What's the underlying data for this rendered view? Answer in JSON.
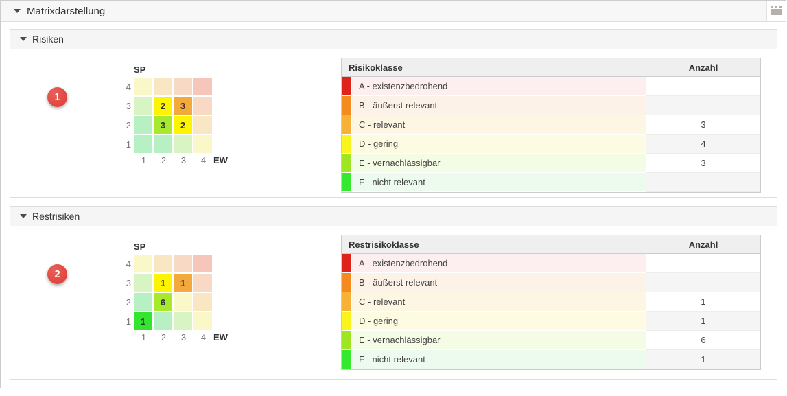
{
  "window": {
    "title": "Matrixdarstellung"
  },
  "risk_colors": {
    "a": {
      "strip": "#df231a",
      "tint": "#fdeef0",
      "cell_pale": "#f6c6ba",
      "cell_active": "#e02218"
    },
    "b": {
      "strip": "#f58b1f",
      "tint": "#fdf2e7",
      "cell_pale": "#f8d9c3",
      "cell_active": "#f58b1f"
    },
    "c": {
      "strip": "#f7b136",
      "tint": "#fcf6e3",
      "cell_pale": "#f9e6c3",
      "cell_active": "#f4a93c"
    },
    "d": {
      "strip": "#f9f41c",
      "tint": "#fdfce2",
      "cell_pale": "#faf8c8",
      "cell_active": "#fdf402"
    },
    "e": {
      "strip": "#9fe622",
      "tint": "#f4fce6",
      "cell_pale": "#d9f4c3",
      "cell_active": "#a7ea2d"
    },
    "f": {
      "strip": "#35e92f",
      "tint": "#edfbef",
      "cell_pale": "#b7f0c2",
      "cell_active": "#33e52f"
    }
  },
  "chart_data": [
    {
      "type": "heatmap",
      "title": "Risiken",
      "xlabel": "EW",
      "ylabel": "SP",
      "x": [
        1,
        2,
        3,
        4
      ],
      "y": [
        1,
        2,
        3,
        4
      ],
      "points": [
        {
          "sp": 3,
          "ew": 2,
          "value": 2,
          "class": "D"
        },
        {
          "sp": 3,
          "ew": 3,
          "value": 3,
          "class": "C"
        },
        {
          "sp": 2,
          "ew": 2,
          "value": 3,
          "class": "E"
        },
        {
          "sp": 2,
          "ew": 3,
          "value": 2,
          "class": "D"
        }
      ]
    },
    {
      "type": "heatmap",
      "title": "Restrisiken",
      "xlabel": "EW",
      "ylabel": "SP",
      "x": [
        1,
        2,
        3,
        4
      ],
      "y": [
        1,
        2,
        3,
        4
      ],
      "points": [
        {
          "sp": 3,
          "ew": 2,
          "value": 1,
          "class": "D"
        },
        {
          "sp": 3,
          "ew": 3,
          "value": 1,
          "class": "C"
        },
        {
          "sp": 2,
          "ew": 2,
          "value": 6,
          "class": "E"
        },
        {
          "sp": 1,
          "ew": 1,
          "value": 1,
          "class": "F"
        }
      ]
    }
  ],
  "sections": [
    {
      "title": "Risiken",
      "badge": "1",
      "matrix": {
        "y_axis": "SP",
        "x_axis": "EW",
        "row_labels": [
          "4",
          "3",
          "2",
          "1"
        ],
        "col_labels": [
          "1",
          "2",
          "3",
          "4"
        ],
        "rows": [
          [
            {
              "cls": "d"
            },
            {
              "cls": "c"
            },
            {
              "cls": "b"
            },
            {
              "cls": "a"
            }
          ],
          [
            {
              "cls": "e"
            },
            {
              "cls": "d",
              "value": "2"
            },
            {
              "cls": "c",
              "value": "3"
            },
            {
              "cls": "b"
            }
          ],
          [
            {
              "cls": "f"
            },
            {
              "cls": "e",
              "value": "3"
            },
            {
              "cls": "d",
              "value": "2"
            },
            {
              "cls": "c"
            }
          ],
          [
            {
              "cls": "f"
            },
            {
              "cls": "f"
            },
            {
              "cls": "e"
            },
            {
              "cls": "d"
            }
          ]
        ]
      },
      "table": {
        "headers": [
          "Risikoklasse",
          "Anzahl"
        ],
        "rows": [
          {
            "cls": "a",
            "label": "A - existenzbedrohend",
            "count": ""
          },
          {
            "cls": "b",
            "label": "B - äußerst relevant",
            "count": ""
          },
          {
            "cls": "c",
            "label": "C - relevant",
            "count": "3"
          },
          {
            "cls": "d",
            "label": "D - gering",
            "count": "4"
          },
          {
            "cls": "e",
            "label": "E - vernachlässigbar",
            "count": "3"
          },
          {
            "cls": "f",
            "label": "F - nicht relevant",
            "count": ""
          }
        ]
      }
    },
    {
      "title": "Restrisiken",
      "badge": "2",
      "matrix": {
        "y_axis": "SP",
        "x_axis": "EW",
        "row_labels": [
          "4",
          "3",
          "2",
          "1"
        ],
        "col_labels": [
          "1",
          "2",
          "3",
          "4"
        ],
        "rows": [
          [
            {
              "cls": "d"
            },
            {
              "cls": "c"
            },
            {
              "cls": "b"
            },
            {
              "cls": "a"
            }
          ],
          [
            {
              "cls": "e"
            },
            {
              "cls": "d",
              "value": "1"
            },
            {
              "cls": "c",
              "value": "1"
            },
            {
              "cls": "b"
            }
          ],
          [
            {
              "cls": "f"
            },
            {
              "cls": "e",
              "value": "6"
            },
            {
              "cls": "d"
            },
            {
              "cls": "c"
            }
          ],
          [
            {
              "cls": "f",
              "value": "1"
            },
            {
              "cls": "f"
            },
            {
              "cls": "e"
            },
            {
              "cls": "d"
            }
          ]
        ]
      },
      "table": {
        "headers": [
          "Restrisikoklasse",
          "Anzahl"
        ],
        "rows": [
          {
            "cls": "a",
            "label": "A - existenzbedrohend",
            "count": ""
          },
          {
            "cls": "b",
            "label": "B - äußerst relevant",
            "count": ""
          },
          {
            "cls": "c",
            "label": "C - relevant",
            "count": "1"
          },
          {
            "cls": "d",
            "label": "D - gering",
            "count": "1"
          },
          {
            "cls": "e",
            "label": "E - vernachlässigbar",
            "count": "6"
          },
          {
            "cls": "f",
            "label": "F - nicht relevant",
            "count": "1"
          }
        ]
      }
    }
  ]
}
